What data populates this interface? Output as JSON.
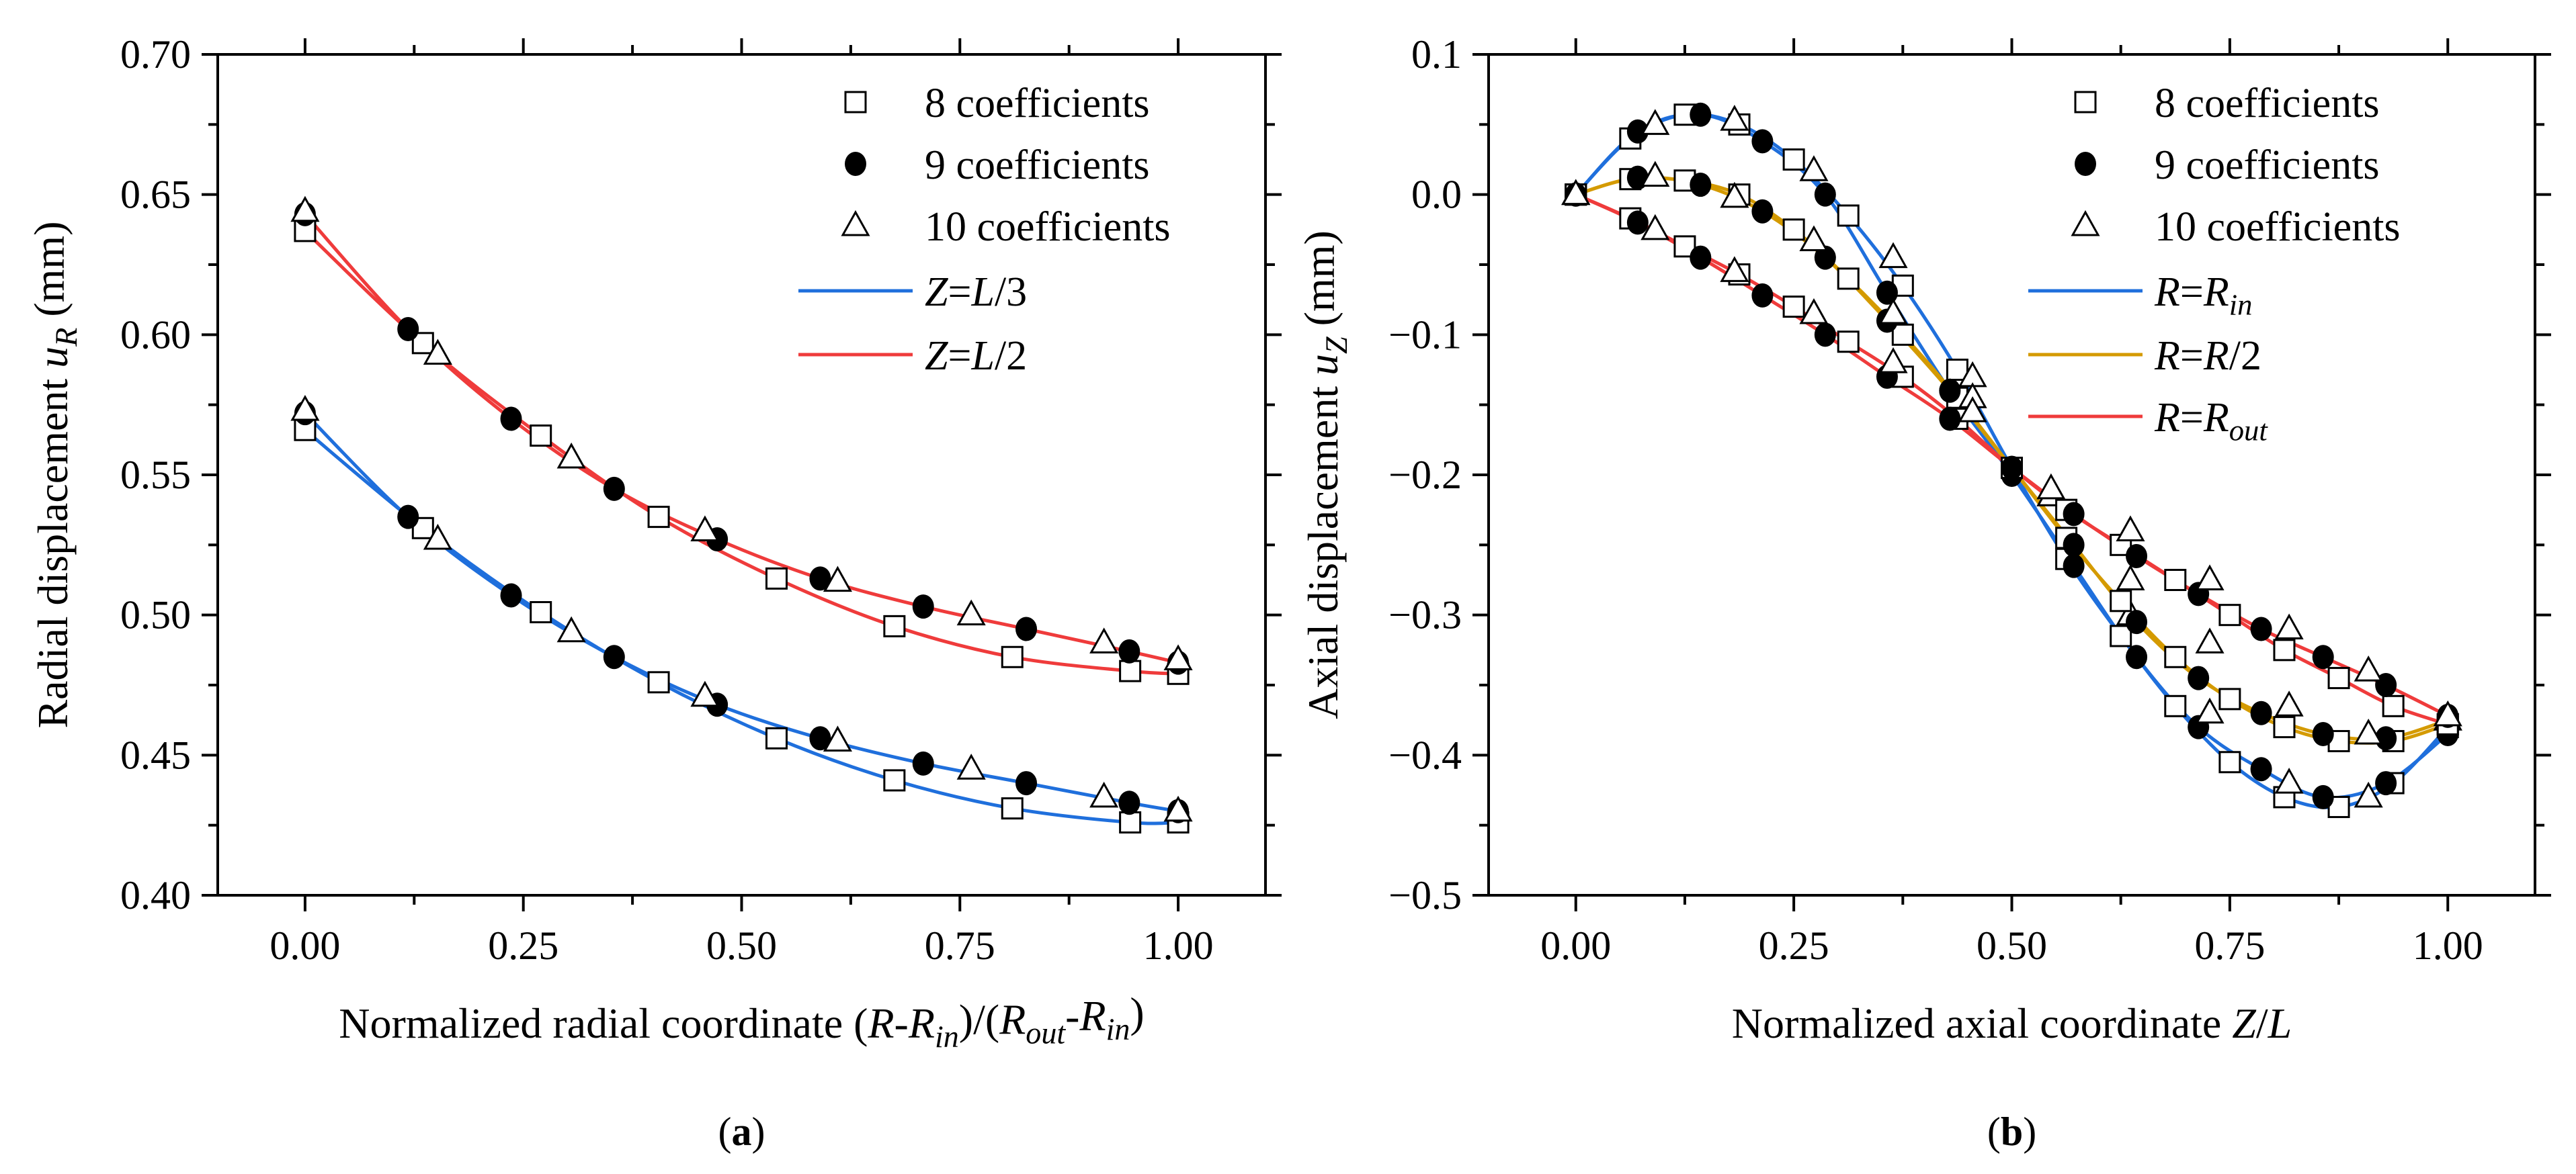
{
  "chart_data": [
    {
      "type": "line",
      "panel": "a",
      "caption": {
        "open": "(",
        "letter": "a",
        "close": ")"
      },
      "xlabel": [
        {
          "t": "Normalized radial coordinate ("
        },
        {
          "t": "R",
          "i": true
        },
        {
          "t": "-"
        },
        {
          "t": "R",
          "i": true
        },
        {
          "t": "in",
          "i": true,
          "sub": true
        },
        {
          "t": ")/("
        },
        {
          "t": "R",
          "i": true
        },
        {
          "t": "out",
          "i": true,
          "sub": true
        },
        {
          "t": "-"
        },
        {
          "t": "R",
          "i": true
        },
        {
          "t": "in",
          "i": true,
          "sub": true
        },
        {
          "t": ")"
        }
      ],
      "ylabel": [
        {
          "t": "Radial displacement "
        },
        {
          "t": "u",
          "i": true
        },
        {
          "t": "R",
          "i": true,
          "sub": true
        },
        {
          "t": " (mm)"
        }
      ],
      "xlim": [
        -0.1,
        1.1
      ],
      "ylim": [
        0.4,
        0.7
      ],
      "xticks": [
        0,
        0.25,
        0.5,
        0.75,
        1.0
      ],
      "xtick_labels": [
        "0.00",
        "0.25",
        "0.50",
        "0.75",
        "1.00"
      ],
      "yticks": [
        0.4,
        0.45,
        0.5,
        0.55,
        0.6,
        0.65,
        0.7
      ],
      "ytick_labels": [
        "0.40",
        "0.45",
        "0.50",
        "0.55",
        "0.60",
        "0.65",
        "0.70"
      ],
      "xminor": 0.125,
      "yminor": 0.025,
      "legend_position": "top-right",
      "legend": [
        {
          "kind": "marker",
          "marker": "square",
          "label": [
            {
              "t": "8 coefficients"
            }
          ]
        },
        {
          "kind": "marker",
          "marker": "circle",
          "label": [
            {
              "t": "9 coefficients"
            }
          ]
        },
        {
          "kind": "marker",
          "marker": "triangle",
          "label": [
            {
              "t": "10 coefficients"
            }
          ]
        },
        {
          "kind": "line",
          "color": "#1f6fdc",
          "label": [
            {
              "t": "Z",
              "i": true
            },
            {
              "t": "="
            },
            {
              "t": "L",
              "i": true
            },
            {
              "t": "/3"
            }
          ]
        },
        {
          "kind": "line",
          "color": "#ef3b3b",
          "label": [
            {
              "t": "Z",
              "i": true
            },
            {
              "t": "="
            },
            {
              "t": "L",
              "i": true
            },
            {
              "t": "/2"
            }
          ]
        }
      ],
      "series": [
        {
          "name": "Z=L/2, 8 coefficients",
          "color": "#ef3b3b",
          "marker": "square",
          "x": [
            0,
            0.135,
            0.27,
            0.405,
            0.54,
            0.675,
            0.81,
            0.945,
            1.0
          ],
          "y": [
            0.637,
            0.597,
            0.564,
            0.535,
            0.513,
            0.496,
            0.485,
            0.48,
            0.479
          ]
        },
        {
          "name": "Z=L/2, 9 coefficients",
          "color": "#ef3b3b",
          "marker": "circle",
          "x": [
            0,
            0.118,
            0.236,
            0.354,
            0.472,
            0.59,
            0.708,
            0.826,
            0.944,
            1.0
          ],
          "y": [
            0.643,
            0.602,
            0.57,
            0.545,
            0.527,
            0.513,
            0.503,
            0.495,
            0.487,
            0.483
          ]
        },
        {
          "name": "Z=L/2, 10 coefficients",
          "color": "#ef3b3b",
          "marker": "triangle",
          "x": [
            0,
            0.152,
            0.305,
            0.458,
            0.61,
            0.763,
            0.915,
            1.0
          ],
          "y": [
            0.644,
            0.593,
            0.556,
            0.53,
            0.512,
            0.5,
            0.49,
            0.484
          ]
        },
        {
          "name": "Z=L/3, 8 coefficients",
          "color": "#1f6fdc",
          "marker": "square",
          "x": [
            0,
            0.135,
            0.27,
            0.405,
            0.54,
            0.675,
            0.81,
            0.945,
            1.0
          ],
          "y": [
            0.566,
            0.531,
            0.501,
            0.476,
            0.456,
            0.441,
            0.431,
            0.426,
            0.426
          ]
        },
        {
          "name": "Z=L/3, 9 coefficients",
          "color": "#1f6fdc",
          "marker": "circle",
          "x": [
            0,
            0.118,
            0.236,
            0.354,
            0.472,
            0.59,
            0.708,
            0.826,
            0.944,
            1.0
          ],
          "y": [
            0.572,
            0.535,
            0.507,
            0.485,
            0.468,
            0.456,
            0.447,
            0.44,
            0.433,
            0.43
          ]
        },
        {
          "name": "Z=L/3, 10 coefficients",
          "color": "#1f6fdc",
          "marker": "triangle",
          "x": [
            0,
            0.152,
            0.305,
            0.458,
            0.61,
            0.763,
            0.915,
            1.0
          ],
          "y": [
            0.573,
            0.527,
            0.494,
            0.471,
            0.455,
            0.445,
            0.435,
            0.43
          ]
        }
      ]
    },
    {
      "type": "line",
      "panel": "b",
      "caption": {
        "open": "(",
        "letter": "b",
        "close": ")"
      },
      "xlabel": [
        {
          "t": "Normalized axial coordinate "
        },
        {
          "t": "Z",
          "i": true
        },
        {
          "t": "/"
        },
        {
          "t": "L",
          "i": true
        }
      ],
      "ylabel": [
        {
          "t": "Axial displacement "
        },
        {
          "t": "u",
          "i": true
        },
        {
          "t": "Z",
          "i": true,
          "sub": true
        },
        {
          "t": " (mm)"
        }
      ],
      "xlim": [
        -0.1,
        1.1
      ],
      "ylim": [
        -0.5,
        0.1
      ],
      "xticks": [
        0,
        0.25,
        0.5,
        0.75,
        1.0
      ],
      "xtick_labels": [
        "0.00",
        "0.25",
        "0.50",
        "0.75",
        "1.00"
      ],
      "yticks": [
        -0.5,
        -0.4,
        -0.3,
        -0.2,
        -0.1,
        0.0,
        0.1
      ],
      "ytick_labels": [
        "−0.5",
        "−0.4",
        "−0.3",
        "−0.2",
        "−0.1",
        "0.0",
        "0.1"
      ],
      "xminor": 0.125,
      "yminor": 0.05,
      "legend_position": "top-right",
      "legend": [
        {
          "kind": "marker",
          "marker": "square",
          "label": [
            {
              "t": "8 coefficients"
            }
          ]
        },
        {
          "kind": "marker",
          "marker": "circle",
          "label": [
            {
              "t": "9 coefficients"
            }
          ]
        },
        {
          "kind": "marker",
          "marker": "triangle",
          "label": [
            {
              "t": "10 coefficients"
            }
          ]
        },
        {
          "kind": "line",
          "color": "#1f6fdc",
          "label": [
            {
              "t": "R",
              "i": true
            },
            {
              "t": "="
            },
            {
              "t": "R",
              "i": true
            },
            {
              "t": "in",
              "i": true,
              "sub": true
            }
          ]
        },
        {
          "kind": "line",
          "color": "#d49a00",
          "label": [
            {
              "t": "R",
              "i": true
            },
            {
              "t": "="
            },
            {
              "t": "R",
              "i": true
            },
            {
              "t": "/2"
            }
          ]
        },
        {
          "kind": "line",
          "color": "#ef3b3b",
          "label": [
            {
              "t": "R",
              "i": true
            },
            {
              "t": "="
            },
            {
              "t": "R",
              "i": true
            },
            {
              "t": "out",
              "i": true,
              "sub": true
            }
          ]
        }
      ],
      "series": [
        {
          "name": "R=Rin, 8 coefficients",
          "color": "#1f6fdc",
          "marker": "square",
          "x": [
            0,
            0.0625,
            0.125,
            0.1875,
            0.25,
            0.3125,
            0.375,
            0.4375,
            0.5,
            0.5625,
            0.625,
            0.6875,
            0.75,
            0.8125,
            0.875,
            0.9375,
            1.0
          ],
          "y": [
            0,
            0.04,
            0.057,
            0.05,
            0.025,
            -0.015,
            -0.065,
            -0.125,
            -0.195,
            -0.26,
            -0.315,
            -0.365,
            -0.405,
            -0.43,
            -0.437,
            -0.42,
            -0.38
          ]
        },
        {
          "name": "R=Rin, 9 coefficients",
          "color": "#1f6fdc",
          "marker": "circle",
          "x": [
            0,
            0.071,
            0.143,
            0.214,
            0.286,
            0.357,
            0.429,
            0.5,
            0.571,
            0.643,
            0.714,
            0.786,
            0.857,
            0.929,
            1.0
          ],
          "y": [
            0,
            0.045,
            0.057,
            0.038,
            0.0,
            -0.07,
            -0.14,
            -0.2,
            -0.265,
            -0.33,
            -0.38,
            -0.41,
            -0.43,
            -0.42,
            -0.385
          ]
        },
        {
          "name": "R=Rin, 10 coefficients",
          "color": "#1f6fdc",
          "marker": "triangle",
          "x": [
            0,
            0.091,
            0.182,
            0.273,
            0.364,
            0.455,
            0.545,
            0.636,
            0.727,
            0.818,
            0.909,
            1.0
          ],
          "y": [
            0,
            0.05,
            0.053,
            0.017,
            -0.045,
            -0.13,
            -0.215,
            -0.3,
            -0.37,
            -0.42,
            -0.43,
            -0.375
          ]
        },
        {
          "name": "R=R/2, 8 coefficients",
          "color": "#d49a00",
          "marker": "square",
          "x": [
            0,
            0.0625,
            0.125,
            0.1875,
            0.25,
            0.3125,
            0.375,
            0.4375,
            0.5,
            0.5625,
            0.625,
            0.6875,
            0.75,
            0.8125,
            0.875,
            0.9375,
            1.0
          ],
          "y": [
            0,
            0.011,
            0.01,
            0.0,
            -0.025,
            -0.06,
            -0.1,
            -0.145,
            -0.195,
            -0.245,
            -0.29,
            -0.33,
            -0.36,
            -0.38,
            -0.39,
            -0.39,
            -0.378
          ]
        },
        {
          "name": "R=R/2, 9 coefficients",
          "color": "#d49a00",
          "marker": "circle",
          "x": [
            0,
            0.071,
            0.143,
            0.214,
            0.286,
            0.357,
            0.429,
            0.5,
            0.571,
            0.643,
            0.714,
            0.786,
            0.857,
            0.929,
            1.0
          ],
          "y": [
            0,
            0.012,
            0.007,
            -0.012,
            -0.045,
            -0.09,
            -0.14,
            -0.195,
            -0.25,
            -0.305,
            -0.345,
            -0.37,
            -0.385,
            -0.388,
            -0.375
          ]
        },
        {
          "name": "R=R/2, 10 coefficients",
          "color": "#d49a00",
          "marker": "triangle",
          "x": [
            0,
            0.091,
            0.182,
            0.273,
            0.364,
            0.455,
            0.545,
            0.636,
            0.727,
            0.818,
            0.909,
            1.0
          ],
          "y": [
            0,
            0.013,
            -0.002,
            -0.033,
            -0.085,
            -0.145,
            -0.215,
            -0.275,
            -0.32,
            -0.365,
            -0.385,
            -0.375
          ]
        },
        {
          "name": "R=Rout, 8 coefficients",
          "color": "#ef3b3b",
          "marker": "square",
          "x": [
            0,
            0.0625,
            0.125,
            0.1875,
            0.25,
            0.3125,
            0.375,
            0.4375,
            0.5,
            0.5625,
            0.625,
            0.6875,
            0.75,
            0.8125,
            0.875,
            0.9375,
            1.0
          ],
          "y": [
            0,
            -0.017,
            -0.037,
            -0.057,
            -0.08,
            -0.105,
            -0.13,
            -0.16,
            -0.195,
            -0.225,
            -0.25,
            -0.275,
            -0.3,
            -0.325,
            -0.345,
            -0.365,
            -0.378
          ]
        },
        {
          "name": "R=Rout, 9 coefficients",
          "color": "#ef3b3b",
          "marker": "circle",
          "x": [
            0,
            0.071,
            0.143,
            0.214,
            0.286,
            0.357,
            0.429,
            0.5,
            0.571,
            0.643,
            0.714,
            0.786,
            0.857,
            0.929,
            1.0
          ],
          "y": [
            0,
            -0.02,
            -0.045,
            -0.072,
            -0.1,
            -0.13,
            -0.16,
            -0.195,
            -0.228,
            -0.258,
            -0.285,
            -0.31,
            -0.33,
            -0.35,
            -0.372
          ]
        },
        {
          "name": "R=Rout, 10 coefficients",
          "color": "#ef3b3b",
          "marker": "triangle",
          "x": [
            0,
            0.091,
            0.182,
            0.273,
            0.364,
            0.455,
            0.545,
            0.636,
            0.727,
            0.818,
            0.909,
            1.0
          ],
          "y": [
            0,
            -0.025,
            -0.055,
            -0.085,
            -0.12,
            -0.155,
            -0.21,
            -0.24,
            -0.275,
            -0.31,
            -0.34,
            -0.372
          ]
        }
      ]
    }
  ]
}
